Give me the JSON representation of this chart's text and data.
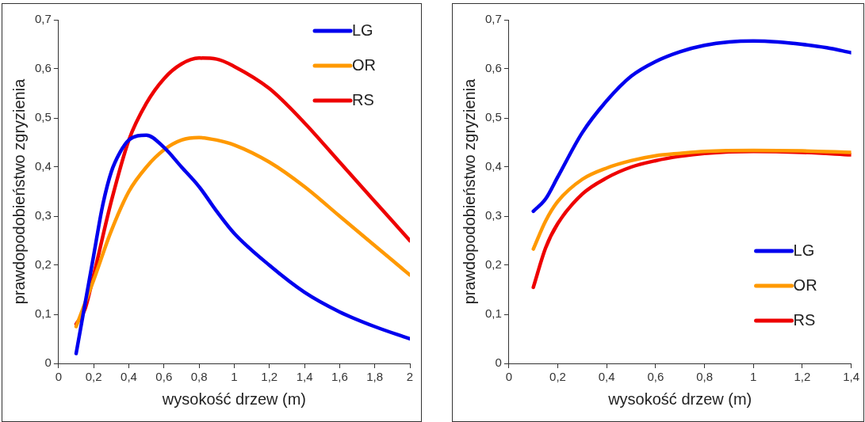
{
  "chart_data": [
    {
      "type": "line",
      "xlabel": "wysokość drzew (m)",
      "ylabel": "prawdopodobieństwo zgryzienia",
      "legend": "top right",
      "grid": false,
      "marker": "none",
      "line_style": "solid",
      "xlim": [
        0,
        2
      ],
      "xticks": [
        0,
        {
          "value": 0.2,
          "label": "0,2"
        },
        {
          "value": 0.4,
          "label": "0,4"
        },
        {
          "value": 0.6,
          "label": "0,6"
        },
        {
          "value": 0.8,
          "label": "0,8"
        },
        1,
        {
          "value": 1.2,
          "label": "1,2"
        },
        {
          "value": 1.4,
          "label": "1,4"
        },
        {
          "value": 1.6,
          "label": "1,6"
        },
        {
          "value": 1.8,
          "label": "1,8"
        },
        2
      ],
      "ylim": [
        0,
        0.7
      ],
      "yticks": [
        0,
        {
          "value": 0.1,
          "label": "0,1"
        },
        {
          "value": 0.2,
          "label": "0,2"
        },
        {
          "value": 0.3,
          "label": "0,3"
        },
        {
          "value": 0.4,
          "label": "0,4"
        },
        {
          "value": 0.5,
          "label": "0,5"
        },
        {
          "value": 0.6,
          "label": "0,6"
        },
        {
          "value": 0.7,
          "label": "0,7"
        }
      ],
      "series": [
        {
          "name": "LG",
          "color": "#0000ee",
          "x": [
            0.1,
            0.15,
            0.2,
            0.25,
            0.3,
            0.35,
            0.4,
            0.5,
            0.6,
            0.7,
            0.8,
            0.9,
            1.0,
            1.2,
            1.4,
            1.6,
            1.8,
            2.0
          ],
          "values": [
            0.02,
            0.12,
            0.22,
            0.32,
            0.39,
            0.43,
            0.455,
            0.465,
            0.44,
            0.4,
            0.36,
            0.31,
            0.265,
            0.2,
            0.145,
            0.105,
            0.075,
            0.05
          ]
        },
        {
          "name": "OR",
          "color": "#ff9900",
          "x": [
            0.1,
            0.2,
            0.3,
            0.4,
            0.5,
            0.6,
            0.7,
            0.8,
            0.9,
            1.0,
            1.2,
            1.4,
            1.6,
            1.8,
            2.0
          ],
          "values": [
            0.075,
            0.17,
            0.27,
            0.35,
            0.4,
            0.435,
            0.455,
            0.46,
            0.455,
            0.445,
            0.41,
            0.36,
            0.3,
            0.24,
            0.18
          ]
        },
        {
          "name": "RS",
          "color": "#ee0000",
          "x": [
            0.1,
            0.15,
            0.2,
            0.3,
            0.4,
            0.5,
            0.6,
            0.7,
            0.8,
            0.9,
            1.0,
            1.2,
            1.4,
            1.6,
            1.8,
            2.0
          ],
          "values": [
            0.08,
            0.11,
            0.18,
            0.33,
            0.455,
            0.53,
            0.58,
            0.61,
            0.622,
            0.62,
            0.605,
            0.56,
            0.49,
            0.41,
            0.33,
            0.25
          ]
        }
      ]
    },
    {
      "type": "line",
      "xlabel": "wysokość drzew (m)",
      "ylabel": "prawdopodobieństwo zgryzienia",
      "legend": "bottom right",
      "grid": false,
      "marker": "none",
      "line_style": "solid",
      "xlim": [
        0,
        1.4
      ],
      "xticks": [
        0,
        {
          "value": 0.2,
          "label": "0,2"
        },
        {
          "value": 0.4,
          "label": "0,4"
        },
        {
          "value": 0.6,
          "label": "0,6"
        },
        {
          "value": 0.8,
          "label": "0,8"
        },
        1,
        {
          "value": 1.2,
          "label": "1,2"
        },
        {
          "value": 1.4,
          "label": "1,4"
        }
      ],
      "ylim": [
        0,
        0.7
      ],
      "yticks": [
        0,
        {
          "value": 0.1,
          "label": "0,1"
        },
        {
          "value": 0.2,
          "label": "0,2"
        },
        {
          "value": 0.3,
          "label": "0,3"
        },
        {
          "value": 0.4,
          "label": "0,4"
        },
        {
          "value": 0.5,
          "label": "0,5"
        },
        {
          "value": 0.6,
          "label": "0,6"
        },
        {
          "value": 0.7,
          "label": "0,7"
        }
      ],
      "series": [
        {
          "name": "LG",
          "color": "#0000ee",
          "x": [
            0.1,
            0.15,
            0.2,
            0.3,
            0.4,
            0.5,
            0.6,
            0.7,
            0.8,
            0.9,
            1.0,
            1.1,
            1.2,
            1.3,
            1.4
          ],
          "values": [
            0.31,
            0.335,
            0.38,
            0.47,
            0.535,
            0.585,
            0.615,
            0.635,
            0.648,
            0.655,
            0.657,
            0.655,
            0.65,
            0.643,
            0.633
          ]
        },
        {
          "name": "OR",
          "color": "#ff9900",
          "x": [
            0.1,
            0.15,
            0.2,
            0.3,
            0.4,
            0.5,
            0.6,
            0.7,
            0.8,
            1.0,
            1.2,
            1.4
          ],
          "values": [
            0.233,
            0.29,
            0.33,
            0.375,
            0.398,
            0.413,
            0.423,
            0.428,
            0.432,
            0.434,
            0.433,
            0.43
          ]
        },
        {
          "name": "RS",
          "color": "#ee0000",
          "x": [
            0.1,
            0.15,
            0.2,
            0.3,
            0.4,
            0.5,
            0.6,
            0.7,
            0.8,
            1.0,
            1.2,
            1.4
          ],
          "values": [
            0.155,
            0.235,
            0.285,
            0.345,
            0.378,
            0.4,
            0.413,
            0.422,
            0.428,
            0.432,
            0.43,
            0.425
          ]
        }
      ]
    }
  ]
}
